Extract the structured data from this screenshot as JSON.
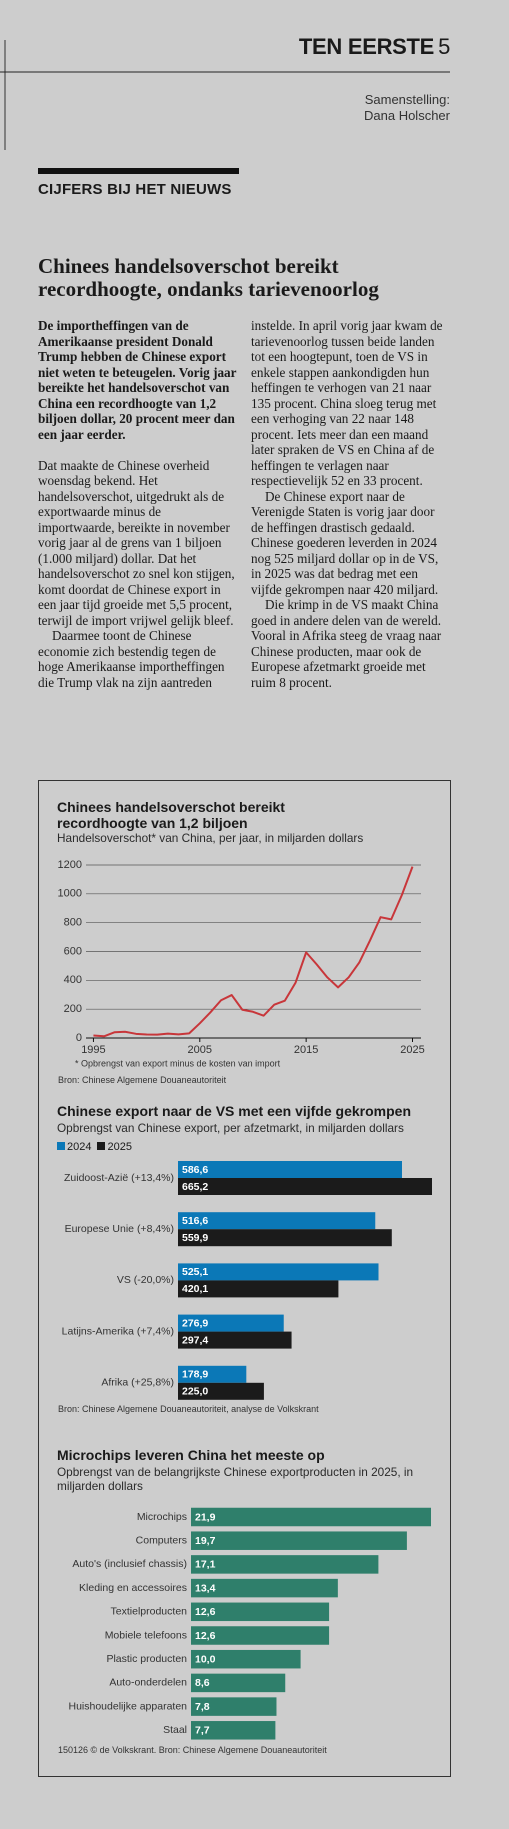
{
  "header": {
    "section": "TEN EERSTE",
    "page": "5",
    "credit": [
      "Samenstelling:",
      "Dana Holscher"
    ],
    "rubric": "CIJFERS BIJ HET NIEUWS"
  },
  "article": {
    "headline": "Chinees handelsoverschot bereikt recordhoogte, ondanks tarievenoorlog",
    "lead": "De importheffingen van de Amerikaanse president Donald Trump hebben de Chinese export niet weten te beteugelen. Vorig jaar bereikte het handelsoverschot van China een recordhoogte van 1,2 biljoen dollar, 20 procent meer dan een jaar eerder.",
    "paragraphs": [
      "Dat maakte de Chinese overheid woensdag bekend. Het handelsoverschot, uitgedrukt als de exportwaarde minus de importwaarde, bereikte in november vorig jaar al de grens van 1 biljoen (1.000 miljard) dollar. Dat het handelsoverschot zo snel kon stijgen, komt doordat de Chinese export in een jaar tijd groeide met 5,5 procent, terwijl de import vrijwel gelijk bleef.",
      "Daarmee toont de Chinese economie zich bestendig tegen de hoge Amerikaanse importheffingen die Trump vlak na zijn aantreden instelde. In april vorig jaar kwam de tarievenoorlog tussen beide landen tot een hoogtepunt, toen de VS in enkele stappen aankondigden hun heffingen te verhogen van 21 naar 135 procent. China sloeg terug met een verhoging van 22 naar 148 procent. Iets meer dan een maand later spraken de VS en China af de heffingen te verlagen naar respectievelijk 52 en 33 procent.",
      "De Chinese export naar de Verenigde Staten is vorig jaar door de heffingen drastisch gedaald. Chinese goederen leverden in 2024 nog 525 miljard dollar op in de VS, in 2025 was dat bedrag met een vijfde gekrompen naar 420 miljard.",
      "Die krimp in de VS maakt China goed in andere delen van de wereld. Vooral in Afrika steeg de vraag naar Chinese producten, maar ook de Europese afzetmarkt groeide met ruim 8 procent."
    ]
  },
  "chart_data": [
    {
      "type": "line",
      "title": "Chinees handelsoverschot bereikt recordhoogte van 1,2 biljoen",
      "subtitle": "Handelsoverschot* van China, per jaar, in miljarden dollars",
      "x": [
        1995,
        1996,
        1997,
        1998,
        1999,
        2000,
        2001,
        2002,
        2003,
        2004,
        2005,
        2006,
        2007,
        2008,
        2009,
        2010,
        2011,
        2012,
        2013,
        2014,
        2015,
        2016,
        2017,
        2018,
        2019,
        2020,
        2021,
        2022,
        2023,
        2024,
        2025
      ],
      "values": [
        17,
        12,
        40,
        43,
        29,
        24,
        23,
        30,
        25,
        32,
        102,
        178,
        262,
        298,
        196,
        182,
        155,
        231,
        259,
        383,
        594,
        510,
        420,
        351,
        421,
        524,
        676,
        838,
        823,
        992,
        1189
      ],
      "color": "#c8363a",
      "xlim": [
        1994.3,
        2025.8
      ],
      "xticks": [
        1995,
        2005,
        2015,
        2025
      ],
      "ylim": [
        0,
        1200
      ],
      "yticks": [
        0,
        200,
        400,
        600,
        800,
        1000,
        1200
      ],
      "grid": true,
      "footnote": "* Opbrengst van export minus de kosten van import",
      "source": "Bron: Chinese Algemene Douaneautoriteit"
    },
    {
      "type": "bar",
      "orientation": "horizontal",
      "title": "Chinese export naar de VS met een vijfde gekrompen",
      "subtitle": "Opbrengst van Chinese export, per afzetmarkt, in miljarden dollars",
      "categories": [
        "Zuidoost-Azië (+13,4%)",
        "Europese Unie (+8,4%)",
        "VS (-20,0%)",
        "Latijns-Amerika (+7,4%)",
        "Afrika (+25,8%)"
      ],
      "series": [
        {
          "name": "2024",
          "color": "#0b78b7",
          "values": [
            586.6,
            516.6,
            525.1,
            276.9,
            178.9
          ],
          "value_labels": [
            "586,6",
            "516,6",
            "525,1",
            "276,9",
            "178,9"
          ]
        },
        {
          "name": "2025",
          "color": "#1b1b1b",
          "values": [
            665.2,
            559.9,
            420.1,
            297.4,
            225.0
          ],
          "value_labels": [
            "665,2",
            "559,9",
            "420,1",
            "297,4",
            "225,0"
          ]
        }
      ],
      "legend": "top-left",
      "source": "Bron: Chinese Algemene Douaneautoriteit, analyse de Volkskrant"
    },
    {
      "type": "bar",
      "orientation": "horizontal",
      "title": "Microchips leveren China het meeste op",
      "subtitle": "Opbrengst van de belangrijkste Chinese exportproducten in 2025, in miljarden dollars",
      "categories": [
        "Microchips",
        "Computers",
        "Auto's (inclusief chassis)",
        "Kleding en accessoires",
        "Textielproducten",
        "Mobiele telefoons",
        "Plastic producten",
        "Auto-onderdelen",
        "Huishoudelijke apparaten",
        "Staal"
      ],
      "values": [
        21.9,
        19.7,
        17.1,
        13.4,
        12.6,
        12.6,
        10.0,
        8.6,
        7.8,
        7.7
      ],
      "value_labels": [
        "21,9",
        "19,7",
        "17,1",
        "13,4",
        "12,6",
        "12,6",
        "10,0",
        "8,6",
        "7,8",
        "7,7"
      ],
      "color": "#2f7f6b",
      "source": "150126 © de Volkskrant. Bron: Chinese Algemene Douaneautoriteit"
    }
  ]
}
